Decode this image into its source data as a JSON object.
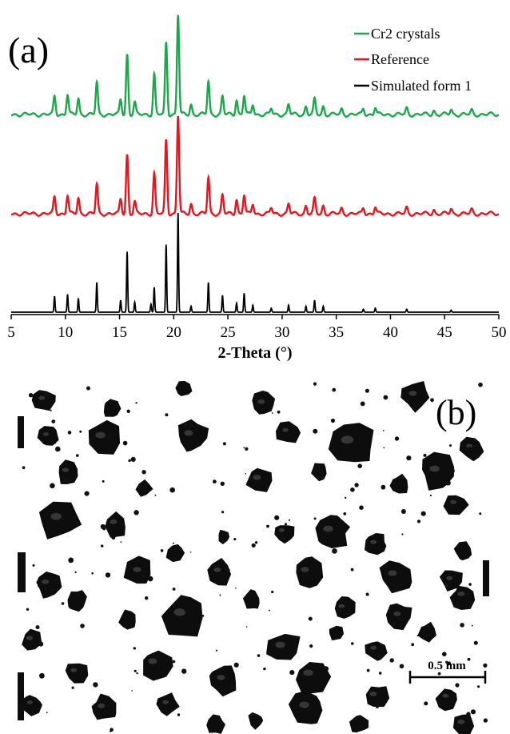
{
  "panel_a": {
    "label": "(a)"
  },
  "panel_b": {
    "label": "(b)",
    "scale_bar_label": "0.5 mm"
  },
  "colors": {
    "cr2": "#1aa84a",
    "reference": "#e8141e",
    "simulated": "#000000"
  },
  "chart_data": {
    "type": "line",
    "title": "",
    "xlabel": "2-Theta (°)",
    "ylabel": "",
    "xlim": [
      5,
      50
    ],
    "x_ticks": [
      5,
      10,
      15,
      20,
      25,
      30,
      35,
      40,
      45,
      50
    ],
    "grid": false,
    "legend_position": "top-right",
    "y_axis_shown": false,
    "series": [
      {
        "name": "Cr2 crystals",
        "color": "#1aa84a",
        "peaks": [
          {
            "x": 9.0,
            "y": 0.18
          },
          {
            "x": 10.2,
            "y": 0.2
          },
          {
            "x": 11.2,
            "y": 0.16
          },
          {
            "x": 12.9,
            "y": 0.32
          },
          {
            "x": 15.1,
            "y": 0.15
          },
          {
            "x": 15.7,
            "y": 0.6
          },
          {
            "x": 16.4,
            "y": 0.12
          },
          {
            "x": 18.2,
            "y": 0.4
          },
          {
            "x": 19.3,
            "y": 0.72
          },
          {
            "x": 20.4,
            "y": 1.0
          },
          {
            "x": 21.6,
            "y": 0.1
          },
          {
            "x": 23.2,
            "y": 0.33
          },
          {
            "x": 24.5,
            "y": 0.18
          },
          {
            "x": 25.8,
            "y": 0.15
          },
          {
            "x": 26.5,
            "y": 0.19
          },
          {
            "x": 27.3,
            "y": 0.1
          },
          {
            "x": 29.0,
            "y": 0.06
          },
          {
            "x": 30.6,
            "y": 0.1
          },
          {
            "x": 32.2,
            "y": 0.08
          },
          {
            "x": 33.0,
            "y": 0.15
          },
          {
            "x": 33.8,
            "y": 0.08
          },
          {
            "x": 35.5,
            "y": 0.05
          },
          {
            "x": 37.5,
            "y": 0.06
          },
          {
            "x": 38.6,
            "y": 0.07
          },
          {
            "x": 41.5,
            "y": 0.06
          },
          {
            "x": 44.0,
            "y": 0.04
          },
          {
            "x": 45.6,
            "y": 0.05
          },
          {
            "x": 47.5,
            "y": 0.04
          }
        ]
      },
      {
        "name": "Reference",
        "color": "#e8141e",
        "peaks": [
          {
            "x": 9.0,
            "y": 0.17
          },
          {
            "x": 10.2,
            "y": 0.19
          },
          {
            "x": 11.2,
            "y": 0.16
          },
          {
            "x": 12.9,
            "y": 0.3
          },
          {
            "x": 15.1,
            "y": 0.15
          },
          {
            "x": 15.7,
            "y": 0.6
          },
          {
            "x": 16.4,
            "y": 0.12
          },
          {
            "x": 18.2,
            "y": 0.41
          },
          {
            "x": 19.3,
            "y": 0.75
          },
          {
            "x": 20.4,
            "y": 1.0
          },
          {
            "x": 21.6,
            "y": 0.1
          },
          {
            "x": 23.2,
            "y": 0.37
          },
          {
            "x": 24.5,
            "y": 0.19
          },
          {
            "x": 25.8,
            "y": 0.15
          },
          {
            "x": 26.5,
            "y": 0.19
          },
          {
            "x": 27.3,
            "y": 0.1
          },
          {
            "x": 29.0,
            "y": 0.06
          },
          {
            "x": 30.6,
            "y": 0.1
          },
          {
            "x": 32.2,
            "y": 0.08
          },
          {
            "x": 33.0,
            "y": 0.15
          },
          {
            "x": 33.8,
            "y": 0.08
          },
          {
            "x": 35.5,
            "y": 0.05
          },
          {
            "x": 37.5,
            "y": 0.06
          },
          {
            "x": 38.6,
            "y": 0.07
          },
          {
            "x": 41.5,
            "y": 0.06
          },
          {
            "x": 44.0,
            "y": 0.04
          },
          {
            "x": 45.6,
            "y": 0.05
          },
          {
            "x": 47.5,
            "y": 0.04
          }
        ]
      },
      {
        "name": "Simulated form 1",
        "color": "#000000",
        "peaks": [
          {
            "x": 9.0,
            "y": 0.16
          },
          {
            "x": 10.2,
            "y": 0.18
          },
          {
            "x": 11.2,
            "y": 0.14
          },
          {
            "x": 12.9,
            "y": 0.3
          },
          {
            "x": 15.1,
            "y": 0.12
          },
          {
            "x": 15.7,
            "y": 0.61
          },
          {
            "x": 16.4,
            "y": 0.1
          },
          {
            "x": 17.9,
            "y": 0.08
          },
          {
            "x": 18.2,
            "y": 0.25
          },
          {
            "x": 19.3,
            "y": 0.68
          },
          {
            "x": 20.4,
            "y": 1.0
          },
          {
            "x": 21.6,
            "y": 0.06
          },
          {
            "x": 23.2,
            "y": 0.3
          },
          {
            "x": 24.5,
            "y": 0.17
          },
          {
            "x": 25.8,
            "y": 0.09
          },
          {
            "x": 26.5,
            "y": 0.19
          },
          {
            "x": 27.3,
            "y": 0.07
          },
          {
            "x": 29.0,
            "y": 0.04
          },
          {
            "x": 30.6,
            "y": 0.07
          },
          {
            "x": 32.2,
            "y": 0.06
          },
          {
            "x": 33.0,
            "y": 0.12
          },
          {
            "x": 33.8,
            "y": 0.06
          },
          {
            "x": 37.5,
            "y": 0.03
          },
          {
            "x": 38.6,
            "y": 0.04
          },
          {
            "x": 41.5,
            "y": 0.03
          },
          {
            "x": 45.6,
            "y": 0.02
          }
        ]
      }
    ]
  }
}
